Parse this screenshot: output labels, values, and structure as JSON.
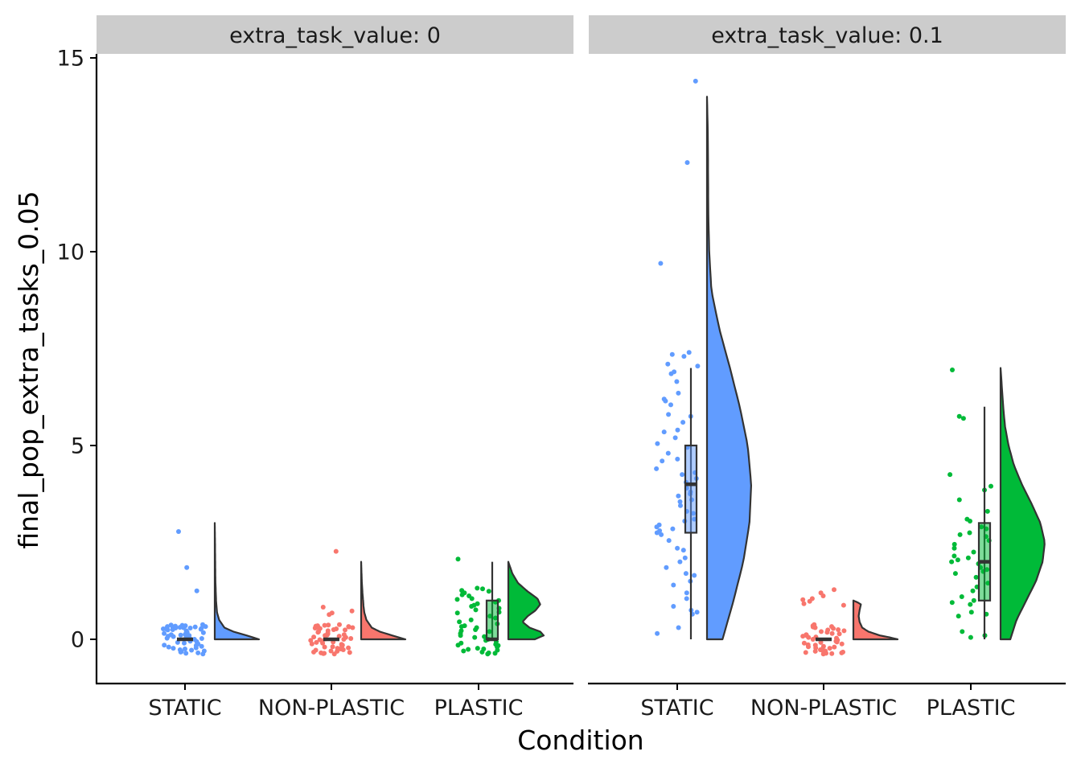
{
  "chart_data": {
    "type": "raincloud",
    "xlabel": "Condition",
    "ylabel": "final_pop_extra_tasks_0.05",
    "ylim": [
      -1.1,
      15.2
    ],
    "yticks": [
      0,
      5,
      10,
      15
    ],
    "categories": [
      "STATIC",
      "NON-PLASTIC",
      "PLASTIC"
    ],
    "grid": false,
    "legend": "none",
    "colors": {
      "STATIC": "#619CFF",
      "NON-PLASTIC": "#F8766D",
      "PLASTIC": "#00BA38",
      "outline": "#333333",
      "strip_bg": "#CCCCCC"
    },
    "facets": [
      {
        "strip": "extra_task_value: 0",
        "groups": [
          {
            "name": "STATIC",
            "box": {
              "min": 0,
              "q1": 0,
              "median": 0,
              "q3": 0,
              "max": 0
            },
            "density_top": 3,
            "density": [
              [
                0,
                1.0
              ],
              [
                0.1,
                0.72
              ],
              [
                0.2,
                0.42
              ],
              [
                0.3,
                0.22
              ],
              [
                0.5,
                0.1
              ],
              [
                0.7,
                0.05
              ],
              [
                1.0,
                0.03
              ],
              [
                1.5,
                0.015
              ],
              [
                2.0,
                0.01
              ],
              [
                2.5,
                0.006
              ],
              [
                3.0,
                0.0
              ]
            ],
            "points": [
              0.27,
              0.31,
              0.33,
              0.29,
              0.36,
              0.25,
              0.3,
              0.34,
              0.28,
              0.32,
              0.35,
              0.26,
              0.3,
              0.33,
              0.27,
              0.31,
              0.29,
              0.34,
              0.22,
              0.18,
              0.12,
              0.08,
              0.15,
              0.1,
              0.05,
              0.13,
              0.07,
              0.11,
              0.0,
              0.02,
              -0.02,
              0.01,
              -0.05,
              -0.08,
              -0.1,
              -0.12,
              -0.15,
              -0.18,
              -0.2,
              -0.25,
              -0.22,
              -0.28,
              -0.3,
              -0.33,
              -0.35,
              -0.38,
              -0.36,
              -0.32,
              -0.27,
              -0.23,
              -0.16,
              -0.06,
              0.03,
              0.09,
              0.17,
              0.24,
              0.38,
              0.37,
              1.25,
              1.85,
              2.78
            ]
          },
          {
            "name": "NON-PLASTIC",
            "box": {
              "min": 0,
              "q1": 0,
              "median": 0,
              "q3": 0,
              "max": 0
            },
            "density_top": 2,
            "density": [
              [
                0,
                1.0
              ],
              [
                0.1,
                0.7
              ],
              [
                0.2,
                0.42
              ],
              [
                0.3,
                0.24
              ],
              [
                0.5,
                0.12
              ],
              [
                0.7,
                0.07
              ],
              [
                0.9,
                0.05
              ],
              [
                1.0,
                0.045
              ],
              [
                1.2,
                0.03
              ],
              [
                1.5,
                0.015
              ],
              [
                2.0,
                0.0
              ]
            ],
            "points": [
              0.35,
              0.3,
              0.33,
              0.28,
              0.36,
              0.25,
              0.31,
              0.27,
              0.34,
              0.29,
              0.32,
              0.24,
              0.2,
              0.16,
              0.12,
              0.08,
              0.14,
              0.1,
              0.05,
              0.18,
              0.0,
              0.02,
              -0.03,
              0.01,
              -0.05,
              -0.08,
              -0.1,
              -0.12,
              -0.15,
              -0.18,
              -0.2,
              -0.22,
              -0.25,
              -0.28,
              -0.3,
              -0.33,
              -0.35,
              -0.37,
              -0.38,
              -0.36,
              -0.34,
              -0.31,
              -0.27,
              -0.23,
              -0.19,
              -0.13,
              -0.07,
              -0.01,
              0.06,
              0.11,
              0.22,
              0.37,
              0.38,
              0.64,
              0.73,
              0.68,
              0.83,
              2.27
            ]
          },
          {
            "name": "PLASTIC",
            "box": {
              "min": 0,
              "q1": 0,
              "median": 0,
              "q3": 1,
              "max": 2
            },
            "density_top": 2,
            "density": [
              [
                0,
                0.6
              ],
              [
                0.1,
                0.8
              ],
              [
                0.2,
                0.72
              ],
              [
                0.3,
                0.48
              ],
              [
                0.45,
                0.32
              ],
              [
                0.6,
                0.44
              ],
              [
                0.75,
                0.62
              ],
              [
                0.9,
                0.72
              ],
              [
                1.05,
                0.66
              ],
              [
                1.25,
                0.42
              ],
              [
                1.45,
                0.22
              ],
              [
                1.7,
                0.09
              ],
              [
                2.0,
                0.0
              ]
            ],
            "points": [
              2.07,
              1.32,
              1.3,
              1.26,
              1.24,
              1.2,
              1.15,
              1.12,
              1.05,
              1.03,
              1.0,
              0.96,
              0.92,
              0.88,
              0.85,
              0.8,
              0.7,
              0.68,
              0.6,
              0.55,
              0.45,
              0.4,
              0.35,
              0.3,
              0.25,
              0.2,
              0.15,
              0.1,
              0.05,
              0.0,
              -0.03,
              -0.06,
              -0.1,
              -0.13,
              -0.16,
              -0.2,
              -0.23,
              -0.26,
              -0.28,
              -0.3,
              -0.33,
              -0.36,
              -0.38,
              -0.35,
              -0.25,
              -0.15,
              0.07,
              0.22,
              0.33,
              0.5,
              0.76
            ]
          }
        ]
      },
      {
        "strip": "extra_task_value: 0.1",
        "groups": [
          {
            "name": "STATIC",
            "box": {
              "min": 0,
              "q1": 2.75,
              "median": 4,
              "q3": 5,
              "max": 7
            },
            "density_top": 14,
            "density": [
              [
                0,
                0.35
              ],
              [
                1,
                0.6
              ],
              [
                2,
                0.82
              ],
              [
                3,
                0.96
              ],
              [
                4,
                1.0
              ],
              [
                5,
                0.92
              ],
              [
                6,
                0.74
              ],
              [
                7,
                0.52
              ],
              [
                8,
                0.28
              ],
              [
                9,
                0.1
              ],
              [
                10,
                0.05
              ],
              [
                11,
                0.03
              ],
              [
                12,
                0.025
              ],
              [
                13,
                0.02
              ],
              [
                14,
                0.0
              ]
            ],
            "points": [
              14.4,
              12.3,
              9.7,
              7.4,
              7.35,
              7.3,
              7.1,
              7.05,
              6.9,
              6.85,
              6.65,
              6.35,
              6.2,
              6.15,
              6.05,
              5.8,
              5.75,
              5.6,
              5.4,
              5.35,
              5.2,
              5.05,
              4.95,
              4.8,
              4.65,
              4.6,
              4.4,
              4.3,
              4.25,
              4.15,
              4.05,
              3.9,
              3.8,
              3.75,
              3.7,
              3.6,
              3.55,
              3.45,
              3.3,
              3.25,
              3.1,
              3.05,
              2.95,
              2.9,
              2.85,
              2.8,
              2.75,
              2.7,
              2.55,
              2.35,
              2.3,
              2.1,
              2.0,
              1.85,
              1.7,
              1.65,
              1.5,
              1.4,
              1.2,
              1.05,
              0.85,
              0.75,
              0.7,
              0.65,
              0.3,
              0.15
            ]
          },
          {
            "name": "NON-PLASTIC",
            "box": {
              "min": 0,
              "q1": 0,
              "median": 0,
              "q3": 0,
              "max": 0
            },
            "density_top": 1,
            "density": [
              [
                0,
                1.0
              ],
              [
                0.05,
                0.82
              ],
              [
                0.1,
                0.6
              ],
              [
                0.2,
                0.34
              ],
              [
                0.3,
                0.2
              ],
              [
                0.45,
                0.14
              ],
              [
                0.6,
                0.12
              ],
              [
                0.75,
                0.14
              ],
              [
                0.9,
                0.17
              ],
              [
                0.95,
                0.1
              ],
              [
                1.0,
                0.0
              ]
            ],
            "points": [
              1.28,
              1.2,
              1.12,
              1.05,
              1.02,
              0.98,
              0.92,
              0.88,
              0.35,
              0.32,
              0.3,
              0.28,
              0.25,
              0.22,
              0.2,
              0.18,
              0.15,
              0.12,
              0.1,
              0.08,
              0.05,
              0.03,
              0.0,
              -0.02,
              -0.05,
              -0.08,
              -0.1,
              -0.12,
              -0.15,
              -0.18,
              -0.2,
              -0.22,
              -0.25,
              -0.28,
              -0.3,
              -0.33,
              -0.35,
              -0.37,
              -0.38,
              -0.36,
              -0.34,
              -0.31,
              -0.27,
              -0.23,
              -0.19,
              -0.14,
              -0.07,
              0.06,
              0.14,
              0.24,
              0.33,
              0.38
            ]
          },
          {
            "name": "PLASTIC",
            "box": {
              "min": 0,
              "q1": 1,
              "median": 2,
              "q3": 3,
              "max": 6
            },
            "density_top": 7,
            "density": [
              [
                0,
                0.22
              ],
              [
                0.5,
                0.36
              ],
              [
                1,
                0.58
              ],
              [
                1.5,
                0.8
              ],
              [
                2,
                0.95
              ],
              [
                2.5,
                1.0
              ],
              [
                3,
                0.9
              ],
              [
                3.5,
                0.7
              ],
              [
                4,
                0.48
              ],
              [
                4.5,
                0.3
              ],
              [
                5,
                0.18
              ],
              [
                5.5,
                0.1
              ],
              [
                6,
                0.06
              ],
              [
                6.5,
                0.03
              ],
              [
                7,
                0.0
              ]
            ],
            "points": [
              6.95,
              5.75,
              5.7,
              4.25,
              3.95,
              3.85,
              3.6,
              3.3,
              3.1,
              3.05,
              2.9,
              2.85,
              2.75,
              2.7,
              2.65,
              2.55,
              2.45,
              2.35,
              2.25,
              2.15,
              2.1,
              2.05,
              2.0,
              1.95,
              1.85,
              1.8,
              1.75,
              1.7,
              1.6,
              1.45,
              1.35,
              1.25,
              1.1,
              1.0,
              0.95,
              0.9,
              0.7,
              0.65,
              0.6,
              0.2,
              0.1,
              0.05
            ]
          }
        ]
      }
    ]
  }
}
